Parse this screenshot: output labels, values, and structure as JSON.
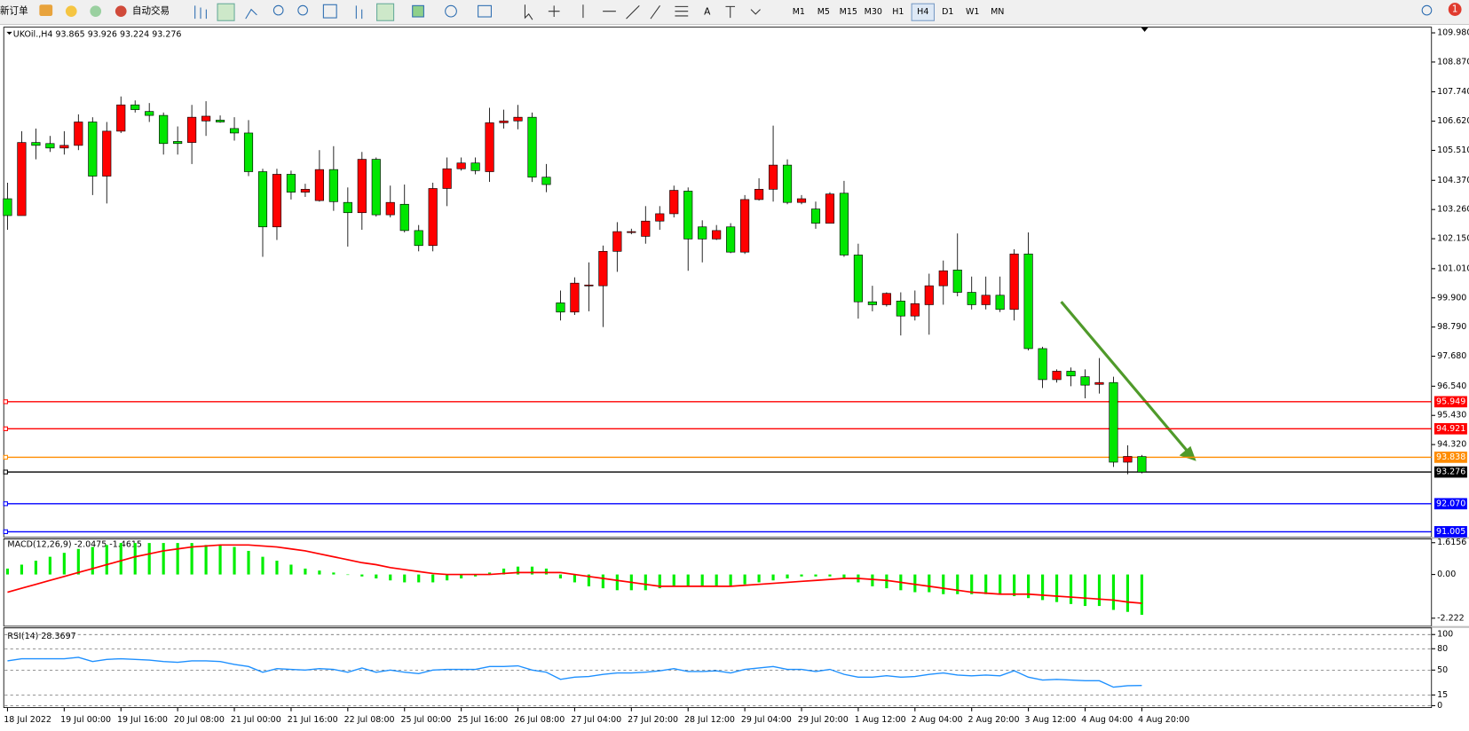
{
  "toolbar": {
    "new_order": "新订单",
    "auto_trading": "自动交易",
    "timeframes": [
      "M1",
      "M5",
      "M15",
      "M30",
      "H1",
      "H4",
      "D1",
      "W1",
      "MN"
    ],
    "active_timeframe": "H4",
    "notifications": 1
  },
  "chart_data": [
    {
      "type": "candlestick",
      "title": "UKOil.,H4  93.865 93.926 93.224 93.276",
      "categories": [
        "18 Jul 2022",
        null,
        null,
        null,
        "19 Jul 00:00",
        null,
        null,
        null,
        "19 Jul 16:00",
        null,
        null,
        null,
        "20 Jul 08:00",
        null,
        null,
        null,
        "21 Jul 00:00",
        null,
        null,
        null,
        "21 Jul 16:00",
        null,
        null,
        null,
        "22 Jul 08:00",
        null,
        null,
        null,
        "25 Jul 00:00",
        null,
        null,
        null,
        "25 Jul 16:00",
        null,
        null,
        null,
        "26 Jul 08:00",
        null,
        null,
        null,
        "27 Jul 04:00",
        null,
        null,
        null,
        "27 Jul 20:00",
        null,
        null,
        null,
        "28 Jul 12:00",
        null,
        null,
        null,
        "29 Jul 04:00",
        null,
        null,
        null,
        "29 Jul 20:00",
        null,
        null,
        null,
        "1 Aug 12:00",
        null,
        null,
        null,
        "2 Aug 04:00",
        null,
        null,
        null,
        "2 Aug 20:00",
        null,
        null,
        null,
        "3 Aug 12:00",
        null,
        null,
        null,
        "4 Aug 04:00",
        null,
        null,
        null,
        "4 Aug 20:00"
      ],
      "open": [
        103.67,
        103.03,
        105.81,
        105.77,
        105.6,
        105.7,
        106.59,
        104.53,
        106.24,
        107.24,
        106.99,
        106.84,
        105.85,
        105.81,
        106.63,
        106.66,
        106.34,
        106.17,
        104.7,
        102.6,
        104.6,
        103.92,
        103.6,
        104.78,
        103.53,
        103.14,
        105.17,
        103.06,
        103.46,
        102.46,
        101.89,
        104.06,
        104.81,
        105.03,
        104.7,
        106.56,
        106.63,
        106.77,
        104.49,
        99.71,
        99.36,
        100.36,
        100.36,
        101.67,
        102.39,
        102.24,
        102.82,
        103.1,
        103.96,
        102.6,
        102.14,
        102.6,
        101.64,
        103.64,
        104.03,
        104.95,
        103.53,
        103.28,
        102.74,
        103.88,
        101.53,
        99.75,
        99.64,
        99.78,
        99.21,
        99.64,
        100.36,
        100.96,
        100.11,
        99.64,
        100.0,
        99.46,
        101.57,
        97.97,
        96.79,
        97.11,
        96.9,
        96.61,
        96.68,
        93.65,
        93.865
      ],
      "high": [
        104.28,
        106.24,
        106.34,
        106.06,
        106.24,
        106.88,
        106.77,
        106.59,
        107.56,
        107.41,
        107.31,
        106.95,
        106.42,
        107.24,
        107.38,
        106.84,
        106.77,
        106.66,
        104.81,
        104.81,
        104.74,
        104.24,
        105.52,
        105.67,
        104.1,
        105.45,
        105.24,
        104.17,
        104.21,
        102.67,
        104.28,
        105.24,
        105.24,
        105.24,
        107.13,
        107.06,
        107.24,
        106.95,
        104.99,
        100.18,
        100.68,
        101.25,
        101.89,
        102.78,
        102.53,
        103.39,
        103.39,
        104.17,
        104.1,
        102.85,
        102.67,
        102.74,
        103.81,
        104.45,
        106.45,
        105.17,
        103.81,
        103.56,
        103.92,
        104.35,
        101.96,
        100.36,
        100.11,
        100.11,
        100.18,
        100.82,
        101.32,
        102.35,
        100.71,
        100.71,
        100.71,
        101.75,
        102.39,
        98.04,
        97.18,
        97.25,
        97.18,
        97.61,
        96.9,
        94.29,
        93.926
      ],
      "low": [
        102.49,
        103.03,
        105.17,
        105.45,
        105.35,
        105.52,
        103.81,
        103.49,
        106.17,
        106.95,
        106.59,
        105.35,
        105.35,
        104.99,
        106.06,
        106.56,
        105.88,
        104.53,
        101.46,
        102.1,
        103.64,
        103.74,
        103.56,
        103.21,
        101.85,
        102.49,
        102.99,
        102.96,
        102.39,
        101.67,
        101.67,
        103.39,
        104.74,
        104.6,
        104.31,
        106.34,
        106.31,
        104.31,
        103.92,
        99.04,
        99.25,
        99.39,
        98.79,
        100.89,
        102.32,
        101.96,
        102.49,
        102.96,
        100.93,
        101.25,
        102.1,
        101.6,
        101.57,
        103.6,
        103.56,
        103.46,
        103.46,
        102.53,
        102.74,
        101.46,
        99.11,
        99.39,
        99.57,
        98.47,
        99.04,
        98.5,
        99.64,
        99.96,
        99.46,
        99.46,
        99.36,
        99.04,
        97.9,
        96.47,
        96.68,
        96.54,
        96.08,
        96.26,
        93.47,
        93.19,
        93.224
      ],
      "close": [
        103.03,
        105.81,
        105.7,
        105.6,
        105.7,
        106.59,
        104.53,
        106.24,
        107.24,
        107.06,
        106.84,
        105.77,
        105.77,
        106.77,
        106.81,
        106.59,
        106.17,
        104.7,
        102.6,
        104.6,
        103.92,
        104.03,
        104.78,
        103.56,
        103.14,
        105.17,
        103.06,
        103.53,
        102.46,
        101.89,
        104.06,
        104.81,
        105.03,
        104.74,
        106.56,
        106.63,
        106.77,
        104.49,
        104.21,
        99.36,
        100.46,
        100.39,
        101.67,
        102.42,
        102.42,
        102.82,
        103.1,
        103.99,
        102.14,
        102.14,
        102.46,
        101.64,
        103.64,
        104.03,
        104.95,
        103.53,
        103.67,
        102.74,
        103.85,
        101.53,
        99.75,
        99.64,
        100.07,
        99.21,
        99.68,
        100.36,
        100.93,
        100.11,
        99.64,
        100.0,
        99.46,
        101.57,
        97.97,
        96.79,
        97.11,
        96.93,
        96.58,
        96.68,
        93.65,
        93.87,
        93.276
      ],
      "up_color": "#ff0000",
      "down_color": "#00e600",
      "ylim": [
        90.84,
        110.16
      ],
      "yticks": [
        {
          "value": 109.98,
          "label": "109.980"
        },
        {
          "value": 108.87,
          "label": "108.870"
        },
        {
          "value": 107.74,
          "label": "107.740"
        },
        {
          "value": 106.62,
          "label": "106.620"
        },
        {
          "value": 105.51,
          "label": "105.510"
        },
        {
          "value": 104.37,
          "label": "104.370"
        },
        {
          "value": 103.26,
          "label": "103.260"
        },
        {
          "value": 102.15,
          "label": "102.150"
        },
        {
          "value": 101.01,
          "label": "101.010"
        },
        {
          "value": 99.9,
          "label": "99.900"
        },
        {
          "value": 98.79,
          "label": "98.790"
        },
        {
          "value": 97.68,
          "label": "97.680"
        },
        {
          "value": 96.54,
          "label": "96.540"
        },
        {
          "value": 95.43,
          "label": "95.430"
        },
        {
          "value": 94.32,
          "label": "94.320"
        }
      ],
      "levels": [
        {
          "value": 95.949,
          "label": "95.949",
          "color": "#ff0000"
        },
        {
          "value": 94.921,
          "label": "94.921",
          "color": "#ff0000"
        },
        {
          "value": 93.838,
          "label": "93.838",
          "color": "#ff8c00"
        },
        {
          "value": 93.276,
          "label": "93.276",
          "color": "#000000"
        },
        {
          "value": 92.07,
          "label": "92.070",
          "color": "#0000ff"
        },
        {
          "value": 91.005,
          "label": "91.005",
          "color": "#0000ff"
        }
      ]
    },
    {
      "type": "macd",
      "title": "MACD(12,26,9) -2.0475 -1.4615",
      "histogram": {
        "color": "#00ee00",
        "values": [
          0.3,
          0.5,
          0.7,
          0.9,
          1.1,
          1.3,
          1.4,
          1.5,
          1.6,
          1.6,
          1.6,
          1.6,
          1.6,
          1.6,
          1.5,
          1.5,
          1.4,
          1.2,
          0.9,
          0.7,
          0.5,
          0.3,
          0.2,
          0.1,
          0.0,
          -0.1,
          -0.2,
          -0.3,
          -0.4,
          -0.4,
          -0.4,
          -0.3,
          -0.2,
          -0.1,
          0.1,
          0.3,
          0.4,
          0.4,
          0.3,
          -0.2,
          -0.4,
          -0.6,
          -0.7,
          -0.8,
          -0.8,
          -0.8,
          -0.7,
          -0.6,
          -0.6,
          -0.6,
          -0.6,
          -0.6,
          -0.5,
          -0.4,
          -0.3,
          -0.2,
          -0.1,
          -0.1,
          -0.1,
          -0.2,
          -0.4,
          -0.6,
          -0.7,
          -0.8,
          -0.9,
          -0.9,
          -1.0,
          -1.0,
          -1.0,
          -1.0,
          -1.0,
          -1.1,
          -1.2,
          -1.3,
          -1.4,
          -1.5,
          -1.6,
          -1.6,
          -1.8,
          -1.9,
          -2.0475
        ]
      },
      "signal": {
        "color": "#ff0000",
        "values": [
          -0.9,
          -0.7,
          -0.5,
          -0.3,
          -0.1,
          0.1,
          0.3,
          0.5,
          0.7,
          0.9,
          1.05,
          1.2,
          1.3,
          1.4,
          1.45,
          1.5,
          1.5,
          1.5,
          1.45,
          1.4,
          1.3,
          1.2,
          1.05,
          0.9,
          0.75,
          0.6,
          0.5,
          0.35,
          0.25,
          0.15,
          0.05,
          0.0,
          0.0,
          0.0,
          0.0,
          0.05,
          0.1,
          0.1,
          0.1,
          0.1,
          0.0,
          -0.1,
          -0.2,
          -0.3,
          -0.4,
          -0.5,
          -0.6,
          -0.6,
          -0.6,
          -0.6,
          -0.6,
          -0.6,
          -0.55,
          -0.5,
          -0.45,
          -0.4,
          -0.35,
          -0.3,
          -0.25,
          -0.2,
          -0.2,
          -0.25,
          -0.3,
          -0.4,
          -0.5,
          -0.6,
          -0.7,
          -0.8,
          -0.9,
          -0.95,
          -1.0,
          -1.0,
          -1.0,
          -1.05,
          -1.1,
          -1.15,
          -1.2,
          -1.25,
          -1.3,
          -1.4,
          -1.4615
        ]
      },
      "ylim": [
        -2.62,
        1.81
      ],
      "yticks": [
        1.6156,
        {
          "value": 0,
          "label": "0.00"
        },
        -2.222
      ]
    },
    {
      "type": "line",
      "title": "RSI(14) 28.3697",
      "color": "#1e90ff",
      "values": [
        63,
        66,
        66,
        66,
        66,
        68,
        62,
        65,
        66,
        65,
        64,
        62,
        61,
        63,
        63,
        62,
        58,
        55,
        47,
        52,
        51,
        50,
        52,
        51,
        47,
        53,
        47,
        50,
        47,
        45,
        50,
        51,
        51,
        51,
        55,
        55,
        56,
        50,
        47,
        37,
        40,
        41,
        44,
        46,
        46,
        47,
        49,
        52,
        48,
        48,
        49,
        46,
        51,
        53,
        55,
        51,
        51,
        48,
        51,
        44,
        40,
        40,
        42,
        40,
        41,
        44,
        46,
        43,
        42,
        43,
        42,
        49,
        40,
        36,
        37,
        36,
        35,
        35,
        26,
        28,
        28.3697
      ],
      "ylim": [
        -2.7,
        109.3
      ],
      "yticks": [
        100,
        80,
        50,
        15,
        0
      ],
      "grid": "dashed"
    }
  ]
}
